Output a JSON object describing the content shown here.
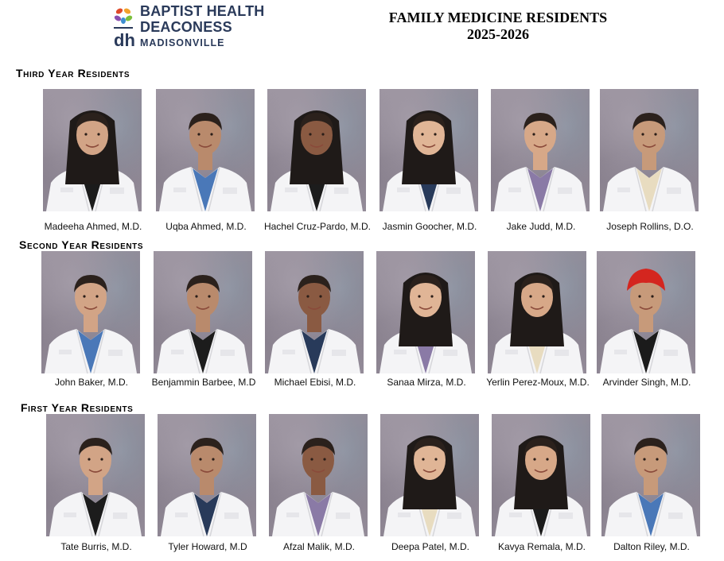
{
  "logo": {
    "line1": "BAPTIST HEALTH",
    "line2": "DEACONESS",
    "line3": "MADISONVILLE",
    "brand_colors": [
      "#e04a2a",
      "#f2a22c",
      "#7bbf3c",
      "#3d8fd0",
      "#8a4fb0"
    ]
  },
  "header": {
    "title_line1": "FAMILY MEDICINE RESIDENTS",
    "title_line2": "2025-2026"
  },
  "sections": [
    {
      "heading": "Third Year Residents",
      "residents": [
        {
          "name": "Madeeha Ahmed, M.D.",
          "portrait-icon": "female-resident-portrait-icon"
        },
        {
          "name": "Uqba Ahmed, M.D.",
          "portrait-icon": "male-resident-portrait-icon"
        },
        {
          "name": "Hachel Cruz-Pardo, M.D.",
          "portrait-icon": "female-resident-portrait-icon"
        },
        {
          "name": "Jasmin Goocher, M.D.",
          "portrait-icon": "female-resident-portrait-icon"
        },
        {
          "name": "Jake Judd, M.D.",
          "portrait-icon": "male-resident-portrait-icon"
        },
        {
          "name": "Joseph Rollins, D.O.",
          "portrait-icon": "male-resident-portrait-icon"
        }
      ]
    },
    {
      "heading": "Second Year Residents",
      "residents": [
        {
          "name": "John Baker, M.D.",
          "portrait-icon": "male-resident-portrait-icon"
        },
        {
          "name": "Benjammin Barbee, M.D",
          "portrait-icon": "male-resident-portrait-icon"
        },
        {
          "name": "Michael Ebisi, M.D.",
          "portrait-icon": "male-resident-portrait-icon"
        },
        {
          "name": "Sanaa Mirza, M.D.",
          "portrait-icon": "female-resident-portrait-icon"
        },
        {
          "name": "Yerlin Perez-Moux, M.D.",
          "portrait-icon": "female-resident-portrait-icon"
        },
        {
          "name": "Arvinder Singh, M.D.",
          "portrait-icon": "male-resident-turban-portrait-icon"
        }
      ]
    },
    {
      "heading": "First Year Residents",
      "residents": [
        {
          "name": "Tate Burris, M.D.",
          "portrait-icon": "male-resident-portrait-icon"
        },
        {
          "name": "Tyler Howard, M.D",
          "portrait-icon": "male-resident-portrait-icon"
        },
        {
          "name": "Afzal Malik, M.D.",
          "portrait-icon": "male-resident-portrait-icon"
        },
        {
          "name": "Deepa Patel, M.D.",
          "portrait-icon": "female-resident-portrait-icon"
        },
        {
          "name": "Kavya Remala, M.D.",
          "portrait-icon": "female-resident-portrait-icon"
        },
        {
          "name": "Dalton Riley, M.D.",
          "portrait-icon": "male-resident-portrait-icon"
        }
      ]
    }
  ]
}
